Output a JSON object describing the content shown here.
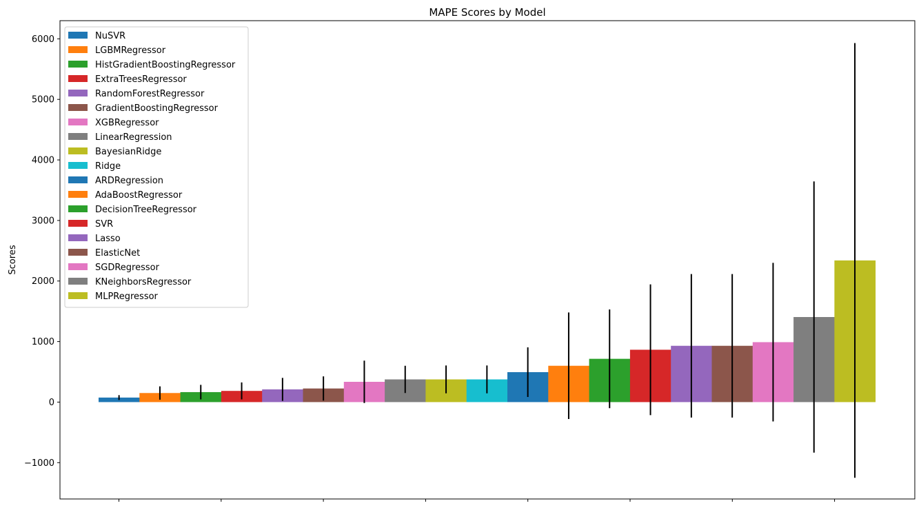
{
  "chart_data": {
    "type": "bar",
    "title": "MAPE Scores by Model",
    "xlabel": "",
    "ylabel": "Scores",
    "ylim": [
      -1600,
      6300
    ],
    "yticks": [
      -1000,
      0,
      1000,
      2000,
      3000,
      4000,
      5000,
      6000
    ],
    "ytick_labels": [
      "−1000",
      "0",
      "1000",
      "2000",
      "3000",
      "4000",
      "5000",
      "6000"
    ],
    "xticks_count": 8,
    "xtick_labels": [],
    "grid": false,
    "legend_placement": "upper-left",
    "series": [
      {
        "name": "NuSVR",
        "value": 75,
        "err": 40,
        "color": "#1f77b4"
      },
      {
        "name": "LGBMRegressor",
        "value": 150,
        "err": 110,
        "color": "#ff7f0e"
      },
      {
        "name": "HistGradientBoostingRegressor",
        "value": 165,
        "err": 120,
        "color": "#2ca02c"
      },
      {
        "name": "ExtraTreesRegressor",
        "value": 185,
        "err": 140,
        "color": "#d62728"
      },
      {
        "name": "RandomForestRegressor",
        "value": 210,
        "err": 190,
        "color": "#9467bd"
      },
      {
        "name": "GradientBoostingRegressor",
        "value": 225,
        "err": 200,
        "color": "#8c564b"
      },
      {
        "name": "XGBRegressor",
        "value": 335,
        "err": 350,
        "color": "#e377c2"
      },
      {
        "name": "LinearRegression",
        "value": 375,
        "err": 225,
        "color": "#7f7f7f"
      },
      {
        "name": "BayesianRidge",
        "value": 375,
        "err": 230,
        "color": "#bcbd22"
      },
      {
        "name": "Ridge",
        "value": 375,
        "err": 230,
        "color": "#17becf"
      },
      {
        "name": "ARDRegression",
        "value": 495,
        "err": 410,
        "color": "#1f77b4"
      },
      {
        "name": "AdaBoostRegressor",
        "value": 600,
        "err": 880,
        "color": "#ff7f0e"
      },
      {
        "name": "DecisionTreeRegressor",
        "value": 715,
        "err": 815,
        "color": "#2ca02c"
      },
      {
        "name": "SVR",
        "value": 865,
        "err": 1080,
        "color": "#d62728"
      },
      {
        "name": "Lasso",
        "value": 930,
        "err": 1185,
        "color": "#9467bd"
      },
      {
        "name": "ElasticNet",
        "value": 930,
        "err": 1185,
        "color": "#8c564b"
      },
      {
        "name": "SGDRegressor",
        "value": 990,
        "err": 1310,
        "color": "#e377c2"
      },
      {
        "name": "KNeighborsRegressor",
        "value": 1405,
        "err": 2240,
        "color": "#7f7f7f"
      },
      {
        "name": "MLPRegressor",
        "value": 2340,
        "err": 3590,
        "color": "#bcbd22"
      }
    ]
  }
}
